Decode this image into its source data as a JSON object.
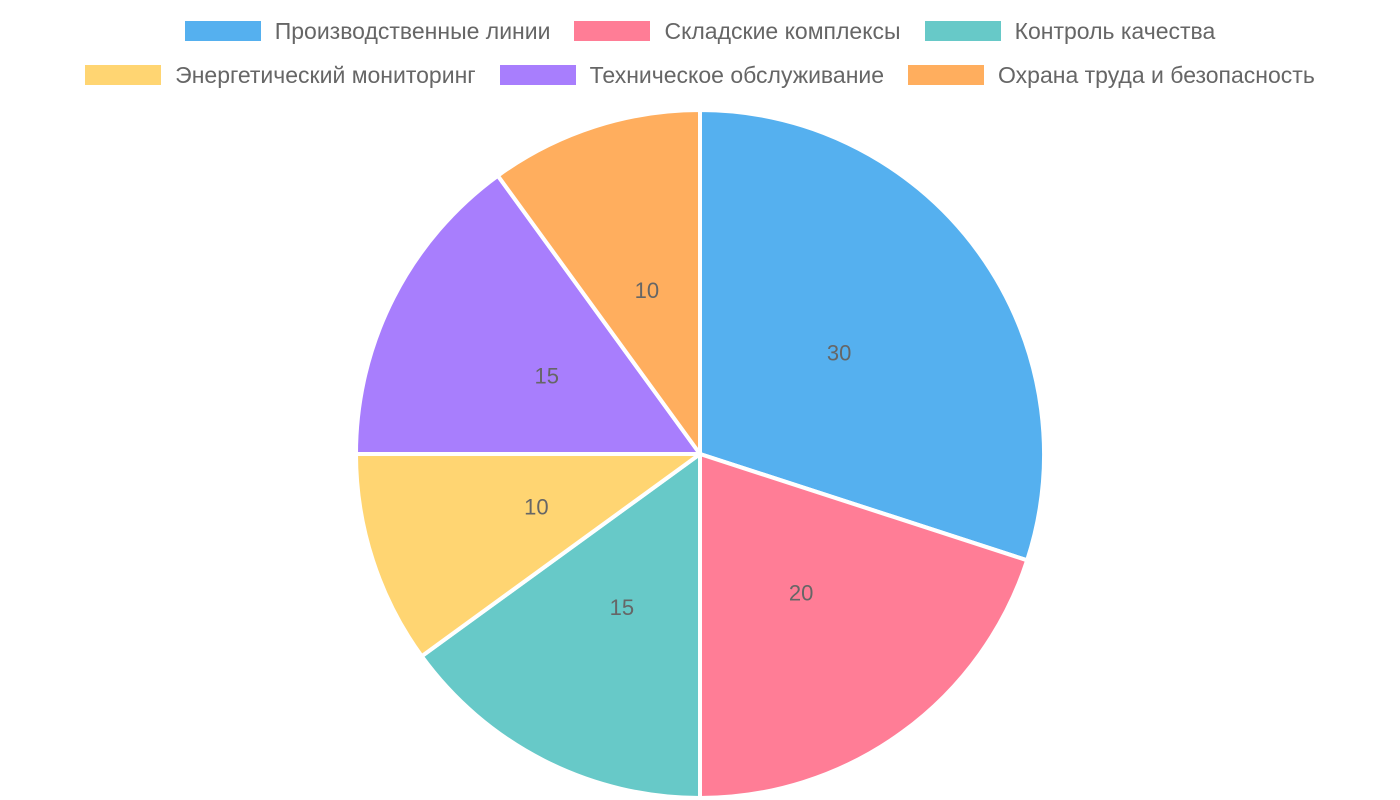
{
  "chart_data": {
    "type": "pie",
    "categories": [
      "Производственные линии",
      "Складские комплексы",
      "Контроль качества",
      "Энергетический мониторинг",
      "Техническое обслуживание",
      "Охрана труда и безопасность"
    ],
    "values": [
      30,
      20,
      15,
      10,
      15,
      10
    ],
    "colors": [
      "#55B0EF",
      "#FF7D96",
      "#67C9C8",
      "#FFD572",
      "#A87EFD",
      "#FFAE5E"
    ],
    "legend_position": "top",
    "value_labels": [
      "30",
      "20",
      "15",
      "10",
      "15",
      "10"
    ]
  }
}
